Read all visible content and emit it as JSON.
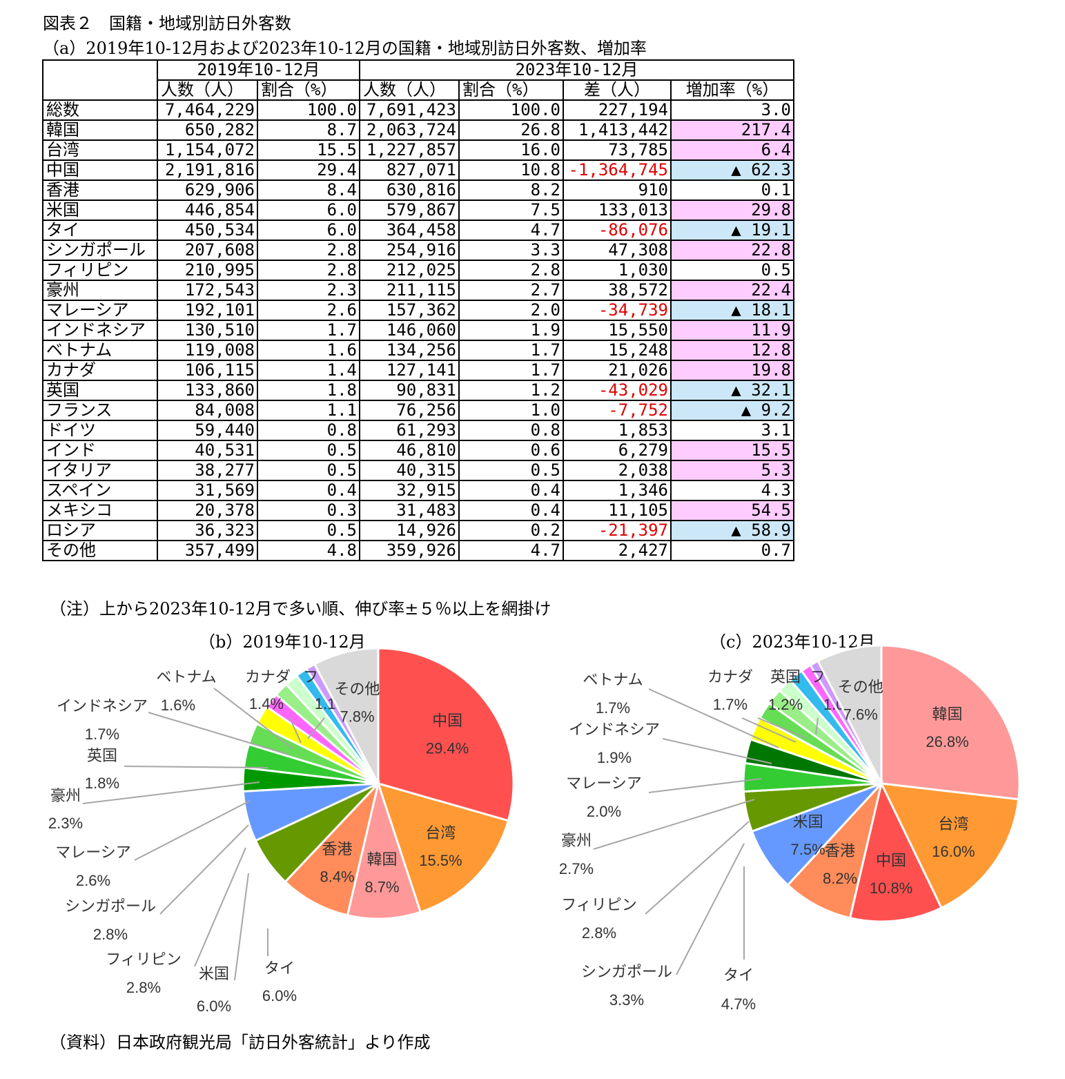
{
  "figure_title": "図表２　国籍・地域別訪日外客数",
  "table_title": "（a）2019年10-12月および2023年10-12月の国籍・地域別訪日外客数、増加率",
  "note": "（注）上から2023年10-12月で多い順、伸び率±５％以上を網掛け",
  "source": "（資料）日本政府観光局「訪日外客統計」より作成",
  "table": {
    "period_2019": "2019年10-12月",
    "period_2023": "2023年10-12月",
    "columns": [
      "人数（人）",
      "割合（%）",
      "人数（人）",
      "割合（%）",
      "差（人）",
      "増加率（%）"
    ],
    "rows": [
      {
        "name": "総数",
        "p2019": "7,464,229",
        "s2019": "100.0",
        "p2023": "7,691,423",
        "s2023": "100.0",
        "diff": "227,194",
        "rate": "3.0",
        "shade": ""
      },
      {
        "name": "韓国",
        "p2019": "650,282",
        "s2019": "8.7",
        "p2023": "2,063,724",
        "s2023": "26.8",
        "diff": "1,413,442",
        "rate": "217.4",
        "shade": "up"
      },
      {
        "name": "台湾",
        "p2019": "1,154,072",
        "s2019": "15.5",
        "p2023": "1,227,857",
        "s2023": "16.0",
        "diff": "73,785",
        "rate": "6.4",
        "shade": "up"
      },
      {
        "name": "中国",
        "p2019": "2,191,816",
        "s2019": "29.4",
        "p2023": "827,071",
        "s2023": "10.8",
        "diff": "-1,364,745",
        "rate": "▲ 62.3",
        "shade": "down"
      },
      {
        "name": "香港",
        "p2019": "629,906",
        "s2019": "8.4",
        "p2023": "630,816",
        "s2023": "8.2",
        "diff": "910",
        "rate": "0.1",
        "shade": ""
      },
      {
        "name": "米国",
        "p2019": "446,854",
        "s2019": "6.0",
        "p2023": "579,867",
        "s2023": "7.5",
        "diff": "133,013",
        "rate": "29.8",
        "shade": "up"
      },
      {
        "name": "タイ",
        "p2019": "450,534",
        "s2019": "6.0",
        "p2023": "364,458",
        "s2023": "4.7",
        "diff": "-86,076",
        "rate": "▲ 19.1",
        "shade": "down"
      },
      {
        "name": "シンガポール",
        "p2019": "207,608",
        "s2019": "2.8",
        "p2023": "254,916",
        "s2023": "3.3",
        "diff": "47,308",
        "rate": "22.8",
        "shade": "up"
      },
      {
        "name": "フィリピン",
        "p2019": "210,995",
        "s2019": "2.8",
        "p2023": "212,025",
        "s2023": "2.8",
        "diff": "1,030",
        "rate": "0.5",
        "shade": ""
      },
      {
        "name": "豪州",
        "p2019": "172,543",
        "s2019": "2.3",
        "p2023": "211,115",
        "s2023": "2.7",
        "diff": "38,572",
        "rate": "22.4",
        "shade": "up"
      },
      {
        "name": "マレーシア",
        "p2019": "192,101",
        "s2019": "2.6",
        "p2023": "157,362",
        "s2023": "2.0",
        "diff": "-34,739",
        "rate": "▲ 18.1",
        "shade": "down"
      },
      {
        "name": "インドネシア",
        "p2019": "130,510",
        "s2019": "1.7",
        "p2023": "146,060",
        "s2023": "1.9",
        "diff": "15,550",
        "rate": "11.9",
        "shade": "up"
      },
      {
        "name": "ベトナム",
        "p2019": "119,008",
        "s2019": "1.6",
        "p2023": "134,256",
        "s2023": "1.7",
        "diff": "15,248",
        "rate": "12.8",
        "shade": "up"
      },
      {
        "name": "カナダ",
        "p2019": "106,115",
        "s2019": "1.4",
        "p2023": "127,141",
        "s2023": "1.7",
        "diff": "21,026",
        "rate": "19.8",
        "shade": "up"
      },
      {
        "name": "英国",
        "p2019": "133,860",
        "s2019": "1.8",
        "p2023": "90,831",
        "s2023": "1.2",
        "diff": "-43,029",
        "rate": "▲ 32.1",
        "shade": "down"
      },
      {
        "name": "フランス",
        "p2019": "84,008",
        "s2019": "1.1",
        "p2023": "76,256",
        "s2023": "1.0",
        "diff": "-7,752",
        "rate": "▲ 9.2",
        "shade": "down"
      },
      {
        "name": "ドイツ",
        "p2019": "59,440",
        "s2019": "0.8",
        "p2023": "61,293",
        "s2023": "0.8",
        "diff": "1,853",
        "rate": "3.1",
        "shade": ""
      },
      {
        "name": "インド",
        "p2019": "40,531",
        "s2019": "0.5",
        "p2023": "46,810",
        "s2023": "0.6",
        "diff": "6,279",
        "rate": "15.5",
        "shade": "up"
      },
      {
        "name": "イタリア",
        "p2019": "38,277",
        "s2019": "0.5",
        "p2023": "40,315",
        "s2023": "0.5",
        "diff": "2,038",
        "rate": "5.3",
        "shade": "up"
      },
      {
        "name": "スペイン",
        "p2019": "31,569",
        "s2019": "0.4",
        "p2023": "32,915",
        "s2023": "0.4",
        "diff": "1,346",
        "rate": "4.3",
        "shade": ""
      },
      {
        "name": "メキシコ",
        "p2019": "20,378",
        "s2019": "0.3",
        "p2023": "31,483",
        "s2023": "0.4",
        "diff": "11,105",
        "rate": "54.5",
        "shade": "up"
      },
      {
        "name": "ロシア",
        "p2019": "36,323",
        "s2019": "0.5",
        "p2023": "14,926",
        "s2023": "0.2",
        "diff": "-21,397",
        "rate": "▲ 58.9",
        "shade": "down"
      },
      {
        "name": "その他",
        "p2019": "357,499",
        "s2019": "4.8",
        "p2023": "359,926",
        "s2023": "4.7",
        "diff": "2,427",
        "rate": "0.7",
        "shade": ""
      }
    ]
  },
  "chart_data": [
    {
      "type": "pie",
      "title": "（b）2019年10-12月",
      "slices": [
        {
          "name": "中国",
          "value": 29.4,
          "label": "29.4%",
          "color": "#ff5050"
        },
        {
          "name": "台湾",
          "value": 15.5,
          "label": "15.5%",
          "color": "#ff9933"
        },
        {
          "name": "韓国",
          "value": 8.7,
          "label": "8.7%",
          "color": "#ff9999"
        },
        {
          "name": "香港",
          "value": 8.4,
          "label": "8.4%",
          "color": "#ff8c5a"
        },
        {
          "name": "タイ",
          "value": 6.0,
          "label": "6.0%",
          "color": "#669900"
        },
        {
          "name": "米国",
          "value": 6.0,
          "label": "6.0%",
          "color": "#6699ff"
        },
        {
          "name": "フィリピン",
          "value": 2.8,
          "label": "2.8%",
          "color": "#009900"
        },
        {
          "name": "シンガポール",
          "value": 2.8,
          "label": "2.8%",
          "color": "#33cc33"
        },
        {
          "name": "マレーシア",
          "value": 2.6,
          "label": "2.6%",
          "color": "#66dd55"
        },
        {
          "name": "豪州",
          "value": 2.3,
          "label": "2.3%",
          "color": "#ffff00"
        },
        {
          "name": "英国",
          "value": 1.8,
          "label": "1.8%",
          "color": "#ff66ff"
        },
        {
          "name": "インドネシア",
          "value": 1.7,
          "label": "1.7%",
          "color": "#99ee88"
        },
        {
          "name": "ベトナム",
          "value": 1.6,
          "label": "1.6%",
          "color": "#ccffcc"
        },
        {
          "name": "カナダ",
          "value": 1.4,
          "label": "1.4%",
          "color": "#33bbee"
        },
        {
          "name": "フランス",
          "value": 1.1,
          "label": "1.1%",
          "color": "#cc99ff"
        },
        {
          "name": "その他",
          "value": 7.8,
          "label": "7.8%",
          "color": "#d9d9d9"
        }
      ]
    },
    {
      "type": "pie",
      "title": "（c）2023年10-12月",
      "slices": [
        {
          "name": "韓国",
          "value": 26.8,
          "label": "26.8%",
          "color": "#ff9999"
        },
        {
          "name": "台湾",
          "value": 16.0,
          "label": "16.0%",
          "color": "#ff9933"
        },
        {
          "name": "中国",
          "value": 10.8,
          "label": "10.8%",
          "color": "#ff5050"
        },
        {
          "name": "香港",
          "value": 8.2,
          "label": "8.2%",
          "color": "#ff8c5a"
        },
        {
          "name": "米国",
          "value": 7.5,
          "label": "7.5%",
          "color": "#6699ff"
        },
        {
          "name": "タイ",
          "value": 4.7,
          "label": "4.7%",
          "color": "#669900"
        },
        {
          "name": "シンガポール",
          "value": 3.3,
          "label": "3.3%",
          "color": "#33cc33"
        },
        {
          "name": "フィリピン",
          "value": 2.8,
          "label": "2.8%",
          "color": "#007700"
        },
        {
          "name": "豪州",
          "value": 2.7,
          "label": "2.7%",
          "color": "#ffff00"
        },
        {
          "name": "マレーシア",
          "value": 2.0,
          "label": "2.0%",
          "color": "#66dd55"
        },
        {
          "name": "インドネシア",
          "value": 1.9,
          "label": "1.9%",
          "color": "#99ee88"
        },
        {
          "name": "ベトナム",
          "value": 1.7,
          "label": "1.7%",
          "color": "#ccffcc"
        },
        {
          "name": "カナダ",
          "value": 1.7,
          "label": "1.7%",
          "color": "#33bbee"
        },
        {
          "name": "英国",
          "value": 1.2,
          "label": "1.2%",
          "color": "#ff66ff"
        },
        {
          "name": "フランス",
          "value": 1.0,
          "label": "1.0%",
          "color": "#cc99ff"
        },
        {
          "name": "その他",
          "value": 7.6,
          "label": "7.6%",
          "color": "#d9d9d9"
        }
      ]
    }
  ]
}
